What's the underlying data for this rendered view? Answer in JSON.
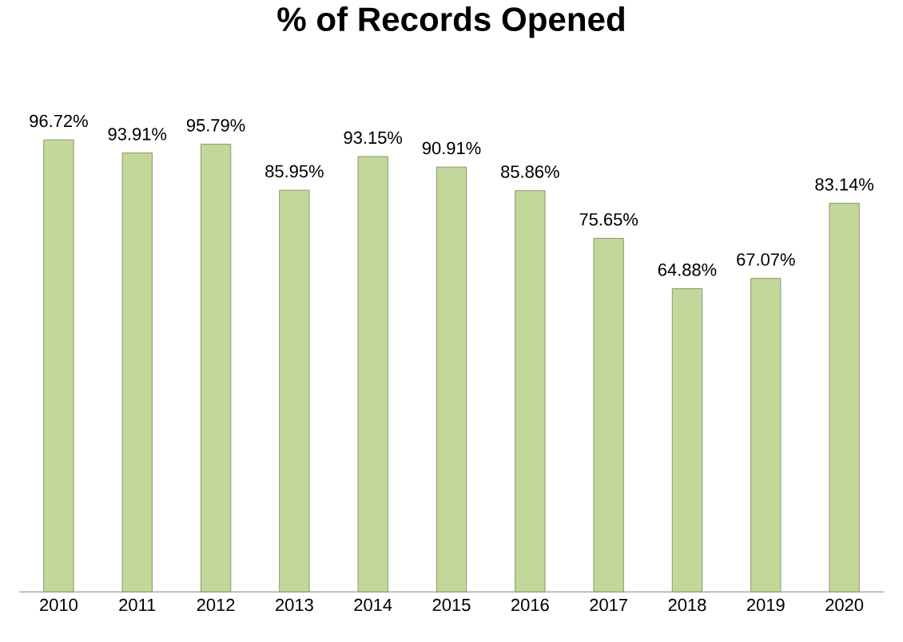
{
  "chart_data": {
    "type": "bar",
    "title": "% of Records Opened",
    "categories": [
      "2010",
      "2011",
      "2012",
      "2013",
      "2014",
      "2015",
      "2016",
      "2017",
      "2018",
      "2019",
      "2020"
    ],
    "values": [
      96.72,
      93.91,
      95.79,
      85.95,
      93.15,
      90.91,
      85.86,
      75.65,
      64.88,
      67.07,
      83.14
    ],
    "value_labels": [
      "96.72%",
      "93.91%",
      "95.79%",
      "85.95%",
      "93.15%",
      "90.91%",
      "85.86%",
      "75.65%",
      "64.88%",
      "67.07%",
      "83.14%"
    ],
    "color": "#c3d79b"
  }
}
